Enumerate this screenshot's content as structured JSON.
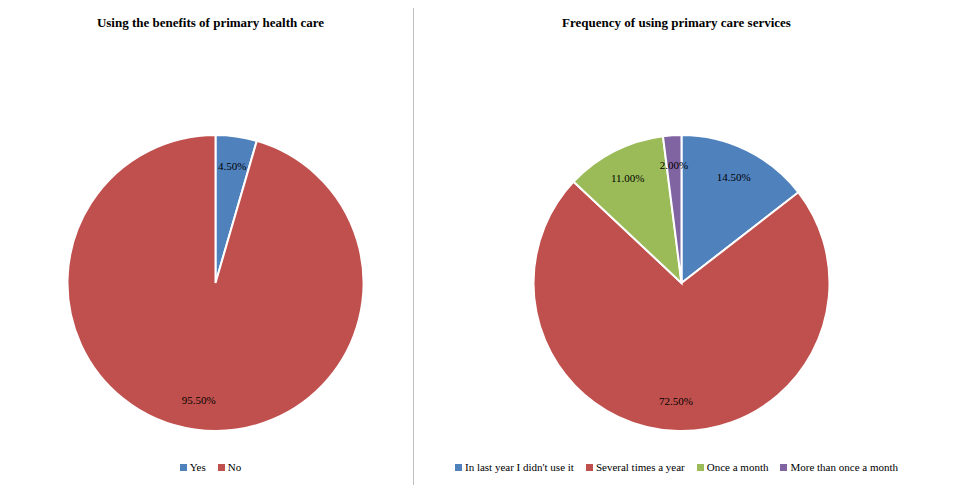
{
  "chart_data": [
    {
      "type": "pie",
      "title": "Using the benefits of primary health care",
      "categories": [
        "Yes",
        "No"
      ],
      "values": [
        4.5,
        95.5
      ],
      "value_labels": [
        "4.50%",
        "95.50%"
      ],
      "colors": [
        "#4f81bd",
        "#c0504d"
      ],
      "data_labels": true,
      "legend": "bottom"
    },
    {
      "type": "pie",
      "title": "Frequency of using primary care services",
      "categories": [
        "In last year I didn't use it",
        "Several times a year",
        "Once a month",
        "More than once a month"
      ],
      "values": [
        14.5,
        72.5,
        11,
        2
      ],
      "value_labels": [
        "14.50%",
        "72.50%",
        "11.00%",
        "2.00%"
      ],
      "colors": [
        "#4f81bd",
        "#c0504d",
        "#9bbb59",
        "#8064a2"
      ],
      "data_labels": true,
      "legend": "bottom"
    }
  ]
}
